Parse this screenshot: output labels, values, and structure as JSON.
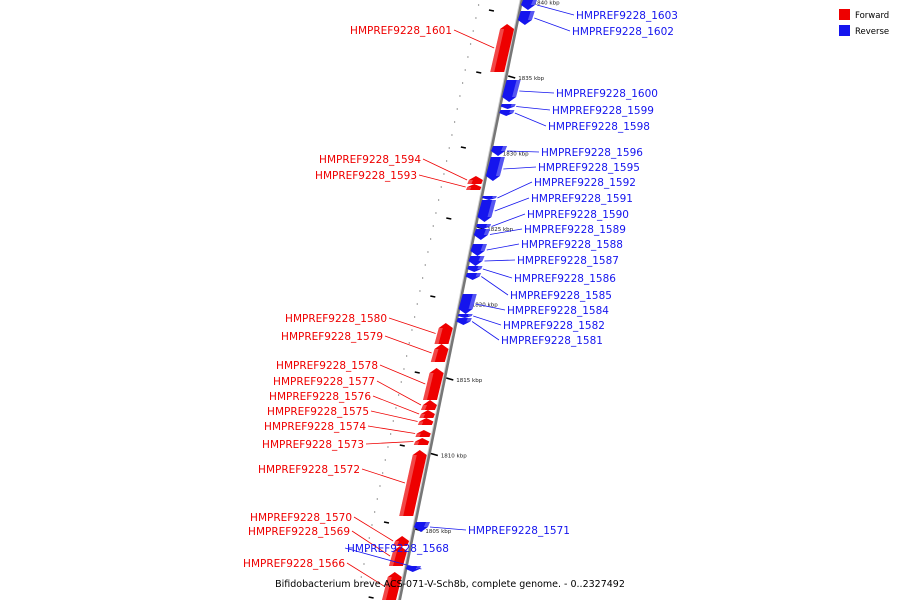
{
  "caption": "Bifidobacterium breve ACS-071-V-Sch8b, complete genome. - 0..2327492",
  "legend": {
    "forward": {
      "label": "Forward",
      "color": "#ee0000"
    },
    "reverse": {
      "label": "Reverse",
      "color": "#1515ee"
    }
  },
  "scale_ticks": [
    {
      "label": "1805 kbp",
      "kbp": 1805
    },
    {
      "label": "1810 kbp",
      "kbp": 1810
    },
    {
      "label": "1815 kbp",
      "kbp": 1815
    },
    {
      "label": "1820 kbp",
      "kbp": 1820
    },
    {
      "label": "1825 kbp",
      "kbp": 1825
    },
    {
      "label": "1830 kbp",
      "kbp": 1830
    },
    {
      "label": "1835 kbp",
      "kbp": 1835
    },
    {
      "label": "1840 kbp",
      "kbp": 1840
    }
  ],
  "genes": [
    {
      "name": "HMPREF9228_1603",
      "strand": "reverse"
    },
    {
      "name": "HMPREF9228_1602",
      "strand": "reverse"
    },
    {
      "name": "HMPREF9228_1601",
      "strand": "forward"
    },
    {
      "name": "HMPREF9228_1600",
      "strand": "reverse"
    },
    {
      "name": "HMPREF9228_1599",
      "strand": "reverse"
    },
    {
      "name": "HMPREF9228_1598",
      "strand": "reverse"
    },
    {
      "name": "HMPREF9228_1596",
      "strand": "reverse"
    },
    {
      "name": "HMPREF9228_1595",
      "strand": "reverse"
    },
    {
      "name": "HMPREF9228_1594",
      "strand": "forward"
    },
    {
      "name": "HMPREF9228_1593",
      "strand": "forward"
    },
    {
      "name": "HMPREF9228_1592",
      "strand": "reverse"
    },
    {
      "name": "HMPREF9228_1591",
      "strand": "reverse"
    },
    {
      "name": "HMPREF9228_1590",
      "strand": "reverse"
    },
    {
      "name": "HMPREF9228_1589",
      "strand": "reverse"
    },
    {
      "name": "HMPREF9228_1588",
      "strand": "reverse"
    },
    {
      "name": "HMPREF9228_1587",
      "strand": "reverse"
    },
    {
      "name": "HMPREF9228_1586",
      "strand": "reverse"
    },
    {
      "name": "HMPREF9228_1585",
      "strand": "reverse"
    },
    {
      "name": "HMPREF9228_1584",
      "strand": "reverse"
    },
    {
      "name": "HMPREF9228_1582",
      "strand": "reverse"
    },
    {
      "name": "HMPREF9228_1581",
      "strand": "reverse"
    },
    {
      "name": "HMPREF9228_1580",
      "strand": "forward"
    },
    {
      "name": "HMPREF9228_1579",
      "strand": "forward"
    },
    {
      "name": "HMPREF9228_1578",
      "strand": "forward"
    },
    {
      "name": "HMPREF9228_1577",
      "strand": "forward"
    },
    {
      "name": "HMPREF9228_1576",
      "strand": "forward"
    },
    {
      "name": "HMPREF9228_1575",
      "strand": "forward"
    },
    {
      "name": "HMPREF9228_1574",
      "strand": "forward"
    },
    {
      "name": "HMPREF9228_1573",
      "strand": "forward"
    },
    {
      "name": "HMPREF9228_1572",
      "strand": "forward"
    },
    {
      "name": "HMPREF9228_1571",
      "strand": "reverse"
    },
    {
      "name": "HMPREF9228_1570",
      "strand": "forward"
    },
    {
      "name": "HMPREF9228_1569",
      "strand": "forward"
    },
    {
      "name": "HMPREF9228_1568",
      "strand": "reverse"
    },
    {
      "name": "HMPREF9228_1566",
      "strand": "forward"
    }
  ]
}
